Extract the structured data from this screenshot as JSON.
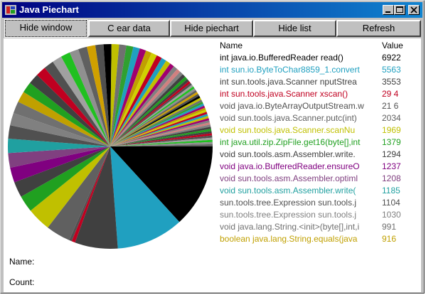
{
  "window": {
    "title": "Java Piechart"
  },
  "title_buttons": {
    "minimize": "minimize-icon",
    "maximize": "maximize-icon",
    "close": "close-icon"
  },
  "toolbar": {
    "hide_window": "Hide window",
    "clear_data": "C ear data",
    "hide_piechart": "Hide piechart",
    "hide_list": "Hide list",
    "refresh": "Refresh"
  },
  "list": {
    "header_name": "Name",
    "header_value": "Value",
    "rows": [
      {
        "name": "int java.io.BufferedReader read()",
        "value": "6922",
        "color": "#000000"
      },
      {
        "name": "int sun.io.ByteToChar8859_1.convert",
        "value": "5563",
        "color": "#20a0c0"
      },
      {
        "name": "int sun.tools.java.Scanner nputStrea",
        "value": "3553",
        "color": "#404040"
      },
      {
        "name": "int sun.tools.java.Scanner xscan()",
        "value": "29 4",
        "color": "#c00020"
      },
      {
        "name": "void java.io.ByteArrayOutputStream.w",
        "value": "21 6",
        "color": "#505050"
      },
      {
        "name": "void sun.tools.java.Scanner.putc(int)",
        "value": "2034",
        "color": "#606060"
      },
      {
        "name": "void sun.tools.java.Scanner.scanNu",
        "value": "1969",
        "color": "#c0c000"
      },
      {
        "name": "int java.util.zip.ZipFile.get16(byte[],int",
        "value": "1379",
        "color": "#20a020"
      },
      {
        "name": "void sun.tools.asm.Assembler.write.",
        "value": "1294",
        "color": "#404040"
      },
      {
        "name": "void java.io.BufferedReader.ensureO",
        "value": "1237",
        "color": "#800080"
      },
      {
        "name": "void sun.tools.asm.Assembler.optiml",
        "value": "1208",
        "color": "#804080"
      },
      {
        "name": "void sun.tools.asm.Assembler.write(",
        "value": "1185",
        "color": "#20a0a0"
      },
      {
        "name": "sun.tools.tree.Expression sun.tools.j",
        "value": "1104",
        "color": "#505050"
      },
      {
        "name": "sun.tools.tree.Expression sun.tools.j",
        "value": "1030",
        "color": "#808080"
      },
      {
        "name": "void java.lang.String.<init>(byte[],int,i",
        "value": "991",
        "color": "#707070"
      },
      {
        "name": "boolean java.lang.String.equals(java",
        "value": "916",
        "color": "#c0a000"
      }
    ]
  },
  "info": {
    "name_label": "Name:",
    "count_label": "Count:"
  },
  "colors": {
    "titlebar_start": "#000080",
    "titlebar_end": "#1084d0",
    "window_bg": "#c0c0c0",
    "pie_palette": [
      "#000000",
      "#404040",
      "#20a0c0",
      "#505050",
      "#c00020",
      "#606060",
      "#808080",
      "#c0c000",
      "#20a020",
      "#a00070",
      "#a0a0a0",
      "#20a0c0",
      "#d0a000",
      "#d08080",
      "#707070",
      "#404040",
      "#c0a000",
      "#20c020",
      "#c0c000",
      "#505050",
      "#808080",
      "#30a030",
      "#c00020",
      "#d0d000",
      "#909090",
      "#a00070"
    ]
  }
}
